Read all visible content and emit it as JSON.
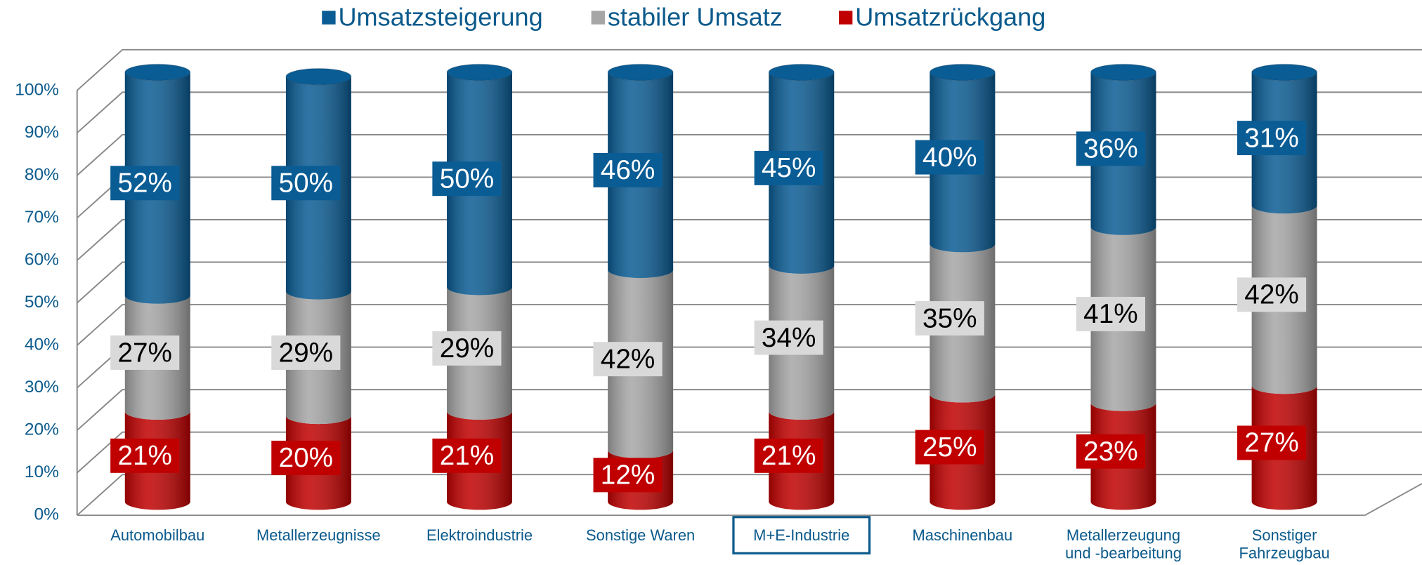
{
  "chart_data": {
    "type": "bar",
    "stacked": true,
    "three_d": true,
    "categories": [
      "Automobilbau",
      "Metallerzeugnisse",
      "Elektroindustrie",
      "Sonstige Waren",
      "M+E-Industrie",
      "Maschinenbau",
      "Metallerzeugung\nund -bearbeitung",
      "Sonstiger\nFahrzeugbau"
    ],
    "series": [
      {
        "name": "Umsatzsteigerung",
        "color": "#0a5c94",
        "values": [
          52,
          50,
          50,
          46,
          45,
          40,
          36,
          31
        ],
        "value_labels": [
          "52%",
          "50%",
          "50%",
          "46%",
          "45%",
          "40%",
          "36%",
          "31%"
        ]
      },
      {
        "name": "stabiler Umsatz",
        "color": "#a6a6a6",
        "values": [
          27,
          29,
          29,
          42,
          34,
          35,
          41,
          42
        ],
        "value_labels": [
          "27%",
          "29%",
          "29%",
          "42%",
          "34%",
          "35%",
          "41%",
          "42%"
        ]
      },
      {
        "name": "Umsatzrückgang",
        "color": "#c00000",
        "values": [
          21,
          20,
          21,
          12,
          21,
          25,
          23,
          27
        ],
        "value_labels": [
          "21%",
          "20%",
          "21%",
          "12%",
          "21%",
          "25%",
          "23%",
          "27%"
        ]
      }
    ],
    "ylim": [
      0,
      100
    ],
    "yticks": [
      {
        "value": 0,
        "label": "0%"
      },
      {
        "value": 10,
        "label": "10%"
      },
      {
        "value": 20,
        "label": "20%"
      },
      {
        "value": 30,
        "label": "30%"
      },
      {
        "value": 40,
        "label": "40%"
      },
      {
        "value": 50,
        "label": "50%"
      },
      {
        "value": 60,
        "label": "60%"
      },
      {
        "value": 70,
        "label": "70%"
      },
      {
        "value": 80,
        "label": "80%"
      },
      {
        "value": 90,
        "label": "90%"
      },
      {
        "value": 100,
        "label": "100%"
      }
    ],
    "grid": true,
    "legend": "top"
  }
}
